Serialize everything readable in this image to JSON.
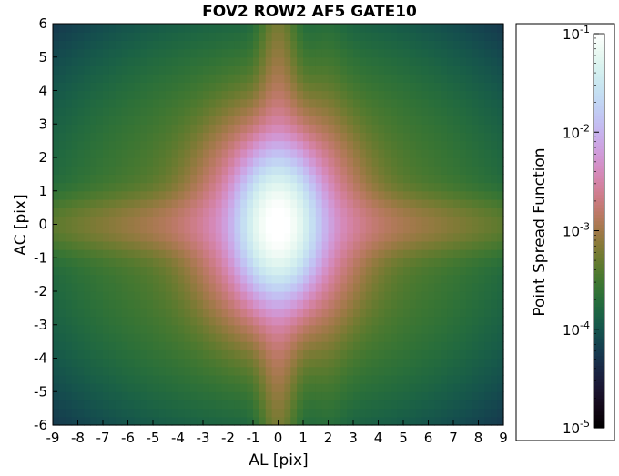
{
  "chart_data": {
    "type": "heatmap",
    "title": "FOV2 ROW2 AF5 GATE10",
    "xlabel": "AL [pix]",
    "ylabel": "AC [pix]",
    "xlim": [
      -9,
      9
    ],
    "ylim": [
      -6,
      6
    ],
    "x_ticks": [
      "-9",
      "-8",
      "-7",
      "-6",
      "-5",
      "-4",
      "-3",
      "-2",
      "-1",
      "0",
      "1",
      "2",
      "3",
      "4",
      "5",
      "6",
      "7",
      "8",
      "9"
    ],
    "y_ticks": [
      "-6",
      "-5",
      "-4",
      "-3",
      "-2",
      "-1",
      "0",
      "1",
      "2",
      "3",
      "4",
      "5",
      "6"
    ],
    "colorbar": {
      "label": "Point Spread Function",
      "scale": "log",
      "range": [
        1e-05,
        0.1
      ],
      "ticks": [
        {
          "value": 1e-05,
          "label": "10-5",
          "base": "10",
          "exp": "-5"
        },
        {
          "value": 0.0001,
          "label": "10-4",
          "base": "10",
          "exp": "-4"
        },
        {
          "value": 0.001,
          "label": "10-3",
          "base": "10",
          "exp": "-3"
        },
        {
          "value": 0.01,
          "label": "10-2",
          "base": "10",
          "exp": "-2"
        },
        {
          "value": 0.1,
          "label": "10-1",
          "base": "10",
          "exp": "-1"
        }
      ],
      "colormap": "cubehelix"
    },
    "grid": false,
    "peak": {
      "x": 0,
      "y": 0,
      "value": 0.1
    }
  }
}
